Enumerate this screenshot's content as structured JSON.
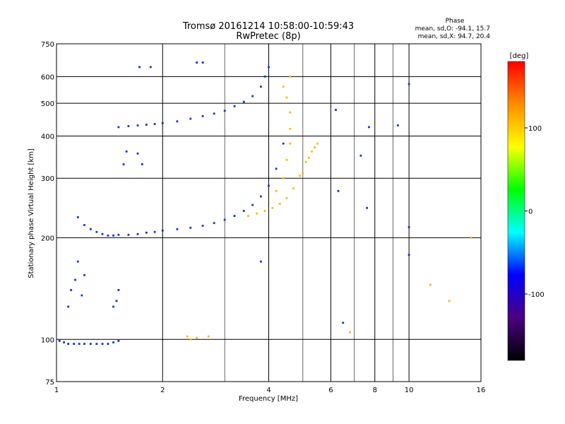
{
  "chart_data": {
    "type": "scatter",
    "title": "Tromsø 20161214 10:58:00-10:59:43",
    "subtitle": "RwPretec (8p)",
    "phase_box": {
      "heading": "Phase",
      "line_o": "mean, sd,O: -94.1, 15.7",
      "line_x": "mean, sd,X:  94.7, 20.4"
    },
    "xlabel": "Frequency [MHz]",
    "ylabel": "Stationary phase Virtual Height [km]",
    "x_scale": "log",
    "y_scale": "log",
    "xlim": [
      1,
      16
    ],
    "ylim": [
      75,
      750
    ],
    "x_ticks": [
      1,
      2,
      4,
      6,
      8,
      10,
      16
    ],
    "x_gridlines": [
      2,
      4,
      6,
      8,
      10
    ],
    "x_minor_gridlines": [
      3,
      5,
      7,
      9
    ],
    "y_ticks": [
      75,
      100,
      200,
      300,
      400,
      500,
      600,
      750
    ],
    "y_gridlines": [
      100,
      200,
      300,
      400,
      500,
      600
    ],
    "grid": true,
    "colorbar": {
      "label": "[deg]",
      "range": [
        -180,
        180
      ],
      "ticks": [
        100,
        0,
        -100
      ],
      "colors": [
        "#000000",
        "#4b0082",
        "#0000ff",
        "#00ffff",
        "#00ff00",
        "#ffff00",
        "#ff8c00",
        "#ff0000"
      ]
    },
    "series": [
      {
        "name": "O",
        "color": "#1030e0",
        "points": [
          [
            1.02,
            99
          ],
          [
            1.05,
            98
          ],
          [
            1.08,
            97
          ],
          [
            1.12,
            97
          ],
          [
            1.16,
            97
          ],
          [
            1.2,
            97
          ],
          [
            1.25,
            97
          ],
          [
            1.3,
            97
          ],
          [
            1.35,
            97
          ],
          [
            1.4,
            97
          ],
          [
            1.45,
            98
          ],
          [
            1.5,
            99
          ],
          [
            1.08,
            125
          ],
          [
            1.1,
            140
          ],
          [
            1.13,
            150
          ],
          [
            1.15,
            170
          ],
          [
            1.18,
            135
          ],
          [
            1.2,
            155
          ],
          [
            1.45,
            125
          ],
          [
            1.48,
            130
          ],
          [
            1.5,
            140
          ],
          [
            1.15,
            230
          ],
          [
            1.2,
            218
          ],
          [
            1.25,
            212
          ],
          [
            1.3,
            208
          ],
          [
            1.35,
            205
          ],
          [
            1.4,
            203
          ],
          [
            1.45,
            203
          ],
          [
            1.5,
            204
          ],
          [
            1.6,
            204
          ],
          [
            1.7,
            205
          ],
          [
            1.8,
            207
          ],
          [
            1.9,
            208
          ],
          [
            2.0,
            210
          ],
          [
            2.2,
            212
          ],
          [
            2.4,
            214
          ],
          [
            2.6,
            217
          ],
          [
            2.8,
            221
          ],
          [
            3.0,
            226
          ],
          [
            3.2,
            232
          ],
          [
            3.4,
            240
          ],
          [
            3.6,
            250
          ],
          [
            3.8,
            265
          ],
          [
            4.0,
            285
          ],
          [
            4.2,
            320
          ],
          [
            4.4,
            380
          ],
          [
            1.5,
            425
          ],
          [
            1.6,
            428
          ],
          [
            1.7,
            430
          ],
          [
            1.8,
            432
          ],
          [
            1.9,
            434
          ],
          [
            2.0,
            437
          ],
          [
            2.2,
            442
          ],
          [
            2.4,
            450
          ],
          [
            2.6,
            458
          ],
          [
            2.8,
            466
          ],
          [
            3.0,
            475
          ],
          [
            3.2,
            490
          ],
          [
            3.4,
            505
          ],
          [
            3.6,
            525
          ],
          [
            3.8,
            560
          ],
          [
            3.9,
            600
          ],
          [
            4.0,
            640
          ],
          [
            1.55,
            330
          ],
          [
            1.58,
            360
          ],
          [
            1.7,
            355
          ],
          [
            1.75,
            330
          ],
          [
            1.72,
            640
          ],
          [
            1.85,
            640
          ],
          [
            2.5,
            660
          ],
          [
            2.6,
            660
          ],
          [
            6.2,
            478
          ],
          [
            6.3,
            275
          ],
          [
            7.3,
            350
          ],
          [
            7.6,
            245
          ],
          [
            7.7,
            425
          ],
          [
            9.3,
            430
          ],
          [
            10,
            570
          ],
          [
            10,
            215
          ],
          [
            10,
            178
          ],
          [
            6.5,
            112
          ],
          [
            3.8,
            170
          ]
        ]
      },
      {
        "name": "X",
        "color": "#f0c000",
        "points": [
          [
            3.5,
            232
          ],
          [
            3.7,
            236
          ],
          [
            3.9,
            240
          ],
          [
            4.1,
            245
          ],
          [
            4.3,
            252
          ],
          [
            4.5,
            262
          ],
          [
            4.7,
            280
          ],
          [
            4.9,
            305
          ],
          [
            5.1,
            335
          ],
          [
            5.3,
            360
          ],
          [
            5.5,
            380
          ],
          [
            4.2,
            275
          ],
          [
            4.4,
            300
          ],
          [
            4.5,
            340
          ],
          [
            4.6,
            380
          ],
          [
            4.6,
            420
          ],
          [
            4.6,
            470
          ],
          [
            4.5,
            520
          ],
          [
            4.4,
            560
          ],
          [
            4.6,
            600
          ],
          [
            5.0,
            310
          ],
          [
            5.2,
            345
          ],
          [
            5.4,
            370
          ],
          [
            2.35,
            102
          ],
          [
            2.4,
            100
          ],
          [
            2.5,
            101
          ],
          [
            2.7,
            102
          ],
          [
            6.8,
            105
          ],
          [
            11.5,
            145
          ],
          [
            13,
            130
          ],
          [
            15,
            200
          ]
        ]
      }
    ]
  }
}
